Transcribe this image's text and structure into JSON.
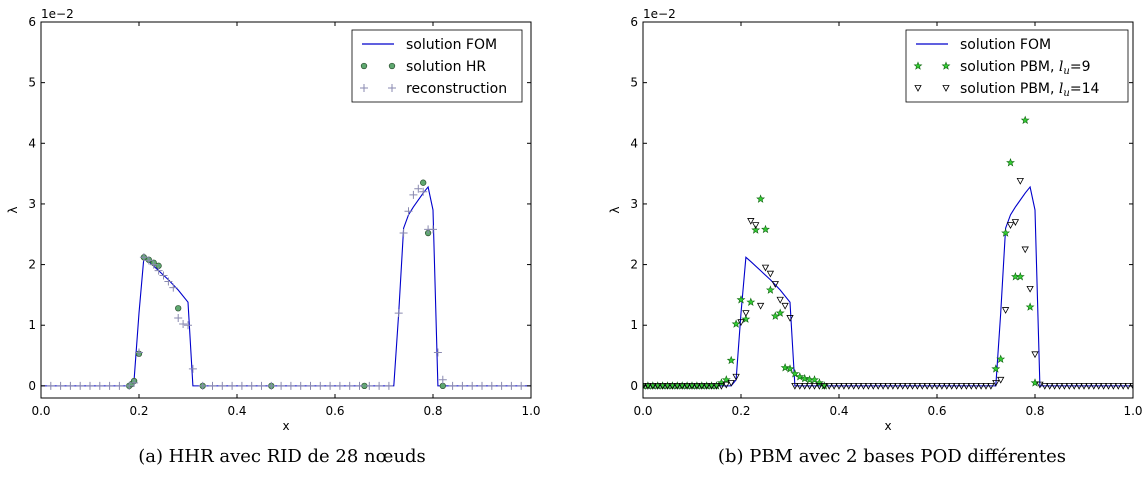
{
  "chart_data": [
    {
      "type": "line",
      "caption": "(a) HHR avec RID de 28 nœuds",
      "xlabel": "x",
      "ylabel": "λ",
      "y_scale_label": "1e−2",
      "xlim": [
        0.0,
        1.0
      ],
      "ylim": [
        -0.2,
        6.0
      ],
      "x_ticks": [
        "0.0",
        "0.2",
        "0.4",
        "0.6",
        "0.8",
        "1.0"
      ],
      "y_ticks": [
        "0",
        "1",
        "2",
        "3",
        "4",
        "5",
        "6"
      ],
      "legend_position": "top-right",
      "series": [
        {
          "name": "solution FOM",
          "style": "line",
          "color": "#0000cc",
          "x": [
            0.0,
            0.18,
            0.19,
            0.2,
            0.21,
            0.22,
            0.24,
            0.26,
            0.28,
            0.3,
            0.31,
            0.4,
            0.6,
            0.72,
            0.73,
            0.74,
            0.75,
            0.76,
            0.78,
            0.79,
            0.8,
            0.81,
            1.0
          ],
          "y": [
            0.0,
            0.0,
            0.1,
            1.2,
            2.12,
            2.05,
            1.9,
            1.75,
            1.58,
            1.38,
            0.0,
            0.0,
            0.0,
            0.0,
            1.2,
            2.6,
            2.82,
            2.95,
            3.18,
            3.28,
            2.9,
            0.0,
            0.0
          ]
        },
        {
          "name": "solution HR",
          "style": "circle",
          "color": "#5fa870",
          "x": [
            0.18,
            0.185,
            0.19,
            0.2,
            0.21,
            0.22,
            0.23,
            0.24,
            0.28,
            0.33,
            0.47,
            0.66,
            0.78,
            0.79,
            0.82
          ],
          "y": [
            0.0,
            0.03,
            0.08,
            0.53,
            2.12,
            2.08,
            2.03,
            1.98,
            1.28,
            0.0,
            0.0,
            0.0,
            3.35,
            2.52,
            0.0
          ]
        },
        {
          "name": "reconstruction",
          "style": "plus",
          "color": "#8a8ab0",
          "x": [
            0.0,
            0.02,
            0.04,
            0.06,
            0.08,
            0.1,
            0.12,
            0.14,
            0.16,
            0.18,
            0.19,
            0.2,
            0.21,
            0.22,
            0.23,
            0.24,
            0.25,
            0.26,
            0.27,
            0.28,
            0.29,
            0.3,
            0.31,
            0.33,
            0.35,
            0.37,
            0.39,
            0.41,
            0.43,
            0.45,
            0.47,
            0.49,
            0.51,
            0.53,
            0.55,
            0.57,
            0.59,
            0.61,
            0.63,
            0.65,
            0.67,
            0.69,
            0.71,
            0.73,
            0.74,
            0.75,
            0.76,
            0.77,
            0.78,
            0.79,
            0.8,
            0.81,
            0.82,
            0.84,
            0.86,
            0.88,
            0.9,
            0.92,
            0.94,
            0.96,
            0.98,
            1.0
          ],
          "y": [
            0.0,
            0.0,
            0.0,
            0.0,
            0.0,
            0.0,
            0.0,
            0.0,
            0.0,
            0.0,
            0.05,
            0.55,
            2.12,
            2.07,
            2.0,
            1.9,
            1.82,
            1.72,
            1.62,
            1.12,
            1.02,
            1.0,
            0.28,
            0.0,
            0.0,
            0.0,
            0.0,
            0.0,
            0.0,
            0.0,
            0.0,
            0.0,
            0.0,
            0.0,
            0.0,
            0.0,
            0.0,
            0.0,
            0.0,
            0.0,
            0.0,
            0.0,
            0.0,
            1.2,
            2.52,
            2.88,
            3.15,
            3.25,
            3.2,
            2.58,
            2.58,
            0.55,
            0.1,
            0.0,
            0.0,
            0.0,
            0.0,
            0.0,
            0.0,
            0.0,
            0.0,
            0.0
          ]
        }
      ]
    },
    {
      "type": "line",
      "caption": "(b) PBM avec 2 bases POD différentes",
      "xlabel": "x",
      "ylabel": "λ",
      "y_scale_label": "1e−2",
      "xlim": [
        0.0,
        1.0
      ],
      "ylim": [
        -0.2,
        6.0
      ],
      "x_ticks": [
        "0.0",
        "0.2",
        "0.4",
        "0.6",
        "0.8",
        "1.0"
      ],
      "y_ticks": [
        "0",
        "1",
        "2",
        "3",
        "4",
        "5",
        "6"
      ],
      "legend_position": "top-right",
      "series": [
        {
          "name": "solution FOM",
          "style": "line",
          "color": "#0000cc",
          "x": [
            0.0,
            0.18,
            0.19,
            0.2,
            0.21,
            0.22,
            0.24,
            0.26,
            0.28,
            0.3,
            0.31,
            0.4,
            0.6,
            0.72,
            0.73,
            0.74,
            0.75,
            0.76,
            0.78,
            0.79,
            0.8,
            0.81,
            1.0
          ],
          "y": [
            0.0,
            0.0,
            0.1,
            1.2,
            2.12,
            2.05,
            1.9,
            1.75,
            1.58,
            1.38,
            0.0,
            0.0,
            0.0,
            0.0,
            1.2,
            2.6,
            2.82,
            2.95,
            3.18,
            3.28,
            2.9,
            0.0,
            0.0
          ]
        },
        {
          "name": "solution PBM, l_u=9",
          "label_main": "solution PBM, ",
          "label_var": "l",
          "label_sub": "u",
          "label_tail": "=9",
          "style": "star",
          "color": "#33cc33",
          "x": [
            0.0,
            0.01,
            0.02,
            0.03,
            0.04,
            0.05,
            0.06,
            0.07,
            0.08,
            0.09,
            0.1,
            0.11,
            0.12,
            0.13,
            0.14,
            0.15,
            0.16,
            0.17,
            0.18,
            0.19,
            0.2,
            0.21,
            0.22,
            0.23,
            0.24,
            0.25,
            0.26,
            0.27,
            0.28,
            0.29,
            0.3,
            0.31,
            0.32,
            0.33,
            0.34,
            0.35,
            0.36,
            0.37,
            0.72,
            0.73,
            0.74,
            0.75,
            0.76,
            0.77,
            0.78,
            0.79,
            0.8
          ],
          "y": [
            0.0,
            0.0,
            0.0,
            0.0,
            0.0,
            0.0,
            0.0,
            0.0,
            0.0,
            0.0,
            0.0,
            0.0,
            0.0,
            0.0,
            0.0,
            0.0,
            0.05,
            0.1,
            0.42,
            1.02,
            1.42,
            1.1,
            1.38,
            2.57,
            3.08,
            2.58,
            1.58,
            1.15,
            1.2,
            0.3,
            0.28,
            0.2,
            0.15,
            0.12,
            0.1,
            0.1,
            0.05,
            0.0,
            0.28,
            0.44,
            2.52,
            3.68,
            1.8,
            1.8,
            4.38,
            1.3,
            0.05
          ]
        },
        {
          "name": "solution PBM, l_u=14",
          "label_main": "solution PBM, ",
          "label_var": "l",
          "label_sub": "u",
          "label_tail": "=14",
          "style": "triangle",
          "color": "#000000",
          "x": [
            0.0,
            0.01,
            0.02,
            0.03,
            0.04,
            0.05,
            0.06,
            0.07,
            0.08,
            0.09,
            0.1,
            0.11,
            0.12,
            0.13,
            0.14,
            0.15,
            0.16,
            0.17,
            0.18,
            0.19,
            0.2,
            0.21,
            0.22,
            0.23,
            0.24,
            0.25,
            0.26,
            0.27,
            0.28,
            0.29,
            0.3,
            0.31,
            0.32,
            0.33,
            0.34,
            0.35,
            0.36,
            0.37,
            0.38,
            0.39,
            0.4,
            0.41,
            0.42,
            0.43,
            0.44,
            0.45,
            0.46,
            0.47,
            0.48,
            0.49,
            0.5,
            0.51,
            0.52,
            0.53,
            0.54,
            0.55,
            0.56,
            0.57,
            0.58,
            0.59,
            0.6,
            0.61,
            0.62,
            0.63,
            0.64,
            0.65,
            0.66,
            0.67,
            0.68,
            0.69,
            0.7,
            0.71,
            0.72,
            0.73,
            0.74,
            0.75,
            0.76,
            0.77,
            0.78,
            0.79,
            0.8,
            0.81,
            0.82,
            0.83,
            0.84,
            0.85,
            0.86,
            0.87,
            0.88,
            0.89,
            0.9,
            0.91,
            0.92,
            0.93,
            0.94,
            0.95,
            0.96,
            0.97,
            0.98,
            0.99,
            1.0
          ],
          "y": [
            0.0,
            0.0,
            0.0,
            0.0,
            0.0,
            0.0,
            0.0,
            0.0,
            0.0,
            0.0,
            0.0,
            0.0,
            0.0,
            0.0,
            0.0,
            0.0,
            0.0,
            0.02,
            0.05,
            0.15,
            1.05,
            1.2,
            2.72,
            2.65,
            1.32,
            1.95,
            1.85,
            1.68,
            1.42,
            1.32,
            1.12,
            0.0,
            0.0,
            0.0,
            0.0,
            0.0,
            0.0,
            0.0,
            0.0,
            0.0,
            0.0,
            0.0,
            0.0,
            0.0,
            0.0,
            0.0,
            0.0,
            0.0,
            0.0,
            0.0,
            0.0,
            0.0,
            0.0,
            0.0,
            0.0,
            0.0,
            0.0,
            0.0,
            0.0,
            0.0,
            0.0,
            0.0,
            0.0,
            0.0,
            0.0,
            0.0,
            0.0,
            0.0,
            0.0,
            0.0,
            0.0,
            0.0,
            0.05,
            0.1,
            1.25,
            2.65,
            2.7,
            3.38,
            2.25,
            1.6,
            0.52,
            0.02,
            0.0,
            0.0,
            0.0,
            0.0,
            0.0,
            0.0,
            0.0,
            0.0,
            0.0,
            0.0,
            0.0,
            0.0,
            0.0,
            0.0,
            0.0,
            0.0,
            0.0,
            0.0,
            0.0
          ]
        }
      ]
    }
  ]
}
